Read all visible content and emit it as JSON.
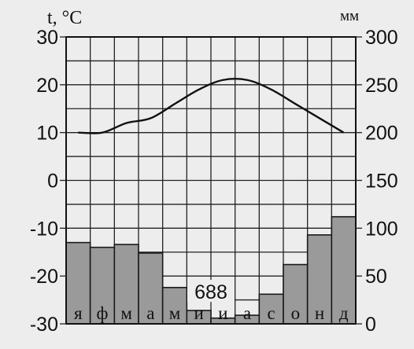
{
  "chart_data": {
    "type": "climate-diagram",
    "months": [
      "я",
      "ф",
      "м",
      "а",
      "м",
      "и",
      "и",
      "а",
      "с",
      "о",
      "н",
      "д"
    ],
    "temperature": {
      "axis_label": "t, °C",
      "ylim": [
        -30,
        30
      ],
      "ticks": [
        30,
        20,
        10,
        0,
        -10,
        -20,
        -30
      ],
      "values": [
        10,
        10,
        12,
        13,
        16,
        19,
        21,
        21,
        19,
        16,
        13,
        10
      ]
    },
    "precipitation": {
      "axis_label": "мм",
      "ylim": [
        0,
        300
      ],
      "ticks": [
        300,
        250,
        200,
        150,
        100,
        50,
        0
      ],
      "values": [
        85,
        80,
        83,
        74,
        38,
        14,
        6,
        9,
        31,
        62,
        93,
        112
      ]
    },
    "annotation": "688",
    "grid": true
  }
}
